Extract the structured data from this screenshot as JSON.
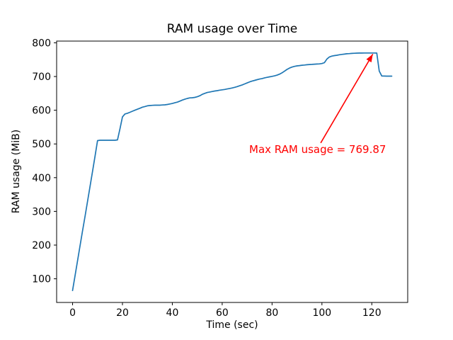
{
  "chart_data": {
    "type": "line",
    "title": "RAM usage over Time",
    "xlabel": "Time (sec)",
    "ylabel": "RAM usage (MiB)",
    "series_name": "RAM usage",
    "line_color": "#1f77b4",
    "grid": false,
    "legend_position": "none",
    "xlim": [
      -6.4,
      134.4
    ],
    "ylim": [
      29.8,
      805.1
    ],
    "xticks": [
      0,
      20,
      40,
      60,
      80,
      100,
      120
    ],
    "yticks": [
      100,
      200,
      300,
      400,
      500,
      600,
      700,
      800
    ],
    "x": [
      0,
      1,
      2,
      3,
      4,
      5,
      6,
      7,
      8,
      9,
      10,
      11,
      12,
      13,
      14,
      15,
      16,
      17,
      18,
      19,
      20,
      21,
      22,
      23,
      24,
      25,
      26,
      27,
      28,
      29,
      30,
      31,
      32,
      33,
      34,
      35,
      36,
      37,
      38,
      39,
      40,
      41,
      42,
      43,
      44,
      45,
      46,
      47,
      48,
      49,
      50,
      51,
      52,
      53,
      54,
      55,
      56,
      57,
      58,
      59,
      60,
      61,
      62,
      63,
      64,
      65,
      66,
      67,
      68,
      69,
      70,
      71,
      72,
      73,
      74,
      75,
      76,
      77,
      78,
      79,
      80,
      81,
      82,
      83,
      84,
      85,
      86,
      87,
      88,
      89,
      90,
      91,
      92,
      93,
      94,
      95,
      96,
      97,
      98,
      99,
      100,
      101,
      102,
      103,
      104,
      105,
      106,
      107,
      108,
      109,
      110,
      111,
      112,
      113,
      114,
      115,
      116,
      117,
      118,
      119,
      120,
      121,
      122,
      123,
      124,
      125,
      126,
      127,
      128
    ],
    "y": [
      65,
      110,
      154,
      198,
      242,
      286,
      330,
      374,
      418,
      464,
      510,
      511,
      511,
      511,
      511,
      511,
      511,
      511,
      512,
      545,
      580,
      589,
      591,
      594,
      597,
      600,
      603,
      606,
      609,
      611,
      613,
      614,
      614.5,
      615,
      615,
      615,
      615.5,
      616,
      617,
      618.5,
      620,
      622,
      624,
      627,
      630,
      632.5,
      635,
      636.5,
      637,
      638,
      640,
      643,
      647,
      650,
      652.5,
      654,
      655.5,
      657,
      658,
      659.5,
      660.5,
      661.5,
      663,
      664.5,
      666,
      668,
      670,
      672.5,
      675,
      678,
      681,
      684,
      686.5,
      688.5,
      690.5,
      692.5,
      694,
      696,
      697.5,
      699,
      700.5,
      702,
      704,
      707,
      711,
      716,
      721,
      725,
      728,
      730,
      731.5,
      732.5,
      733.5,
      734,
      735,
      735.5,
      736,
      736.5,
      737,
      737.5,
      738.5,
      741,
      752,
      758,
      760.5,
      762,
      763,
      764.5,
      765.5,
      766.5,
      767.5,
      768,
      768.5,
      769,
      769.3,
      769.5,
      769.6,
      769.7,
      769.8,
      769.85,
      769.87,
      769.87,
      769.6,
      716,
      701.5,
      701.3,
      701.2,
      701.1,
      701
    ],
    "max_value": 769.87,
    "annotation": {
      "text": "Max RAM usage = 769.87",
      "color": "#ff0000",
      "xy": [
        121,
        769.87
      ],
      "arrow_start": [
        99.5,
        503
      ],
      "arrow_end": [
        120.4,
        766.5
      ],
      "text_pos": [
        70.7,
        473
      ]
    }
  }
}
